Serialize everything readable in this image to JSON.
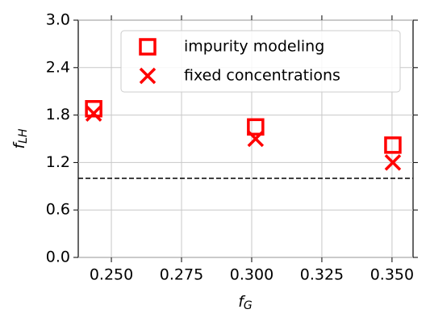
{
  "chart_data": {
    "type": "scatter",
    "xlabel": "f",
    "xlabel_sub": "G",
    "ylabel": "f",
    "ylabel_sub": "LH",
    "series": [
      {
        "name": "impurity modeling",
        "color": "#ff0000",
        "marker": "square",
        "x": [
          0.2437,
          0.3014,
          0.3503
        ],
        "values": [
          1.88,
          1.65,
          1.42
        ]
      },
      {
        "name": "fixed concentrations",
        "color": "#ff0000",
        "marker": "x",
        "x": [
          0.2437,
          0.3014,
          0.3503
        ],
        "values": [
          1.82,
          1.5,
          1.2
        ]
      }
    ],
    "hline": 1.0,
    "xlim": [
      0.2382,
      0.3575
    ],
    "xticks": [
      {
        "value": 0.25,
        "label": "0.250"
      },
      0.275,
      {
        "value": 0.3,
        "label": "0.300"
      },
      0.325,
      {
        "value": 0.35,
        "label": "0.350"
      }
    ],
    "ylim": [
      0,
      3
    ],
    "yticks": [
      {
        "value": 0,
        "label": "0.0"
      },
      0.6,
      1.2,
      1.8,
      2.4,
      {
        "value": 3,
        "label": "3.0"
      }
    ],
    "grid": true,
    "legend": "upper right"
  }
}
